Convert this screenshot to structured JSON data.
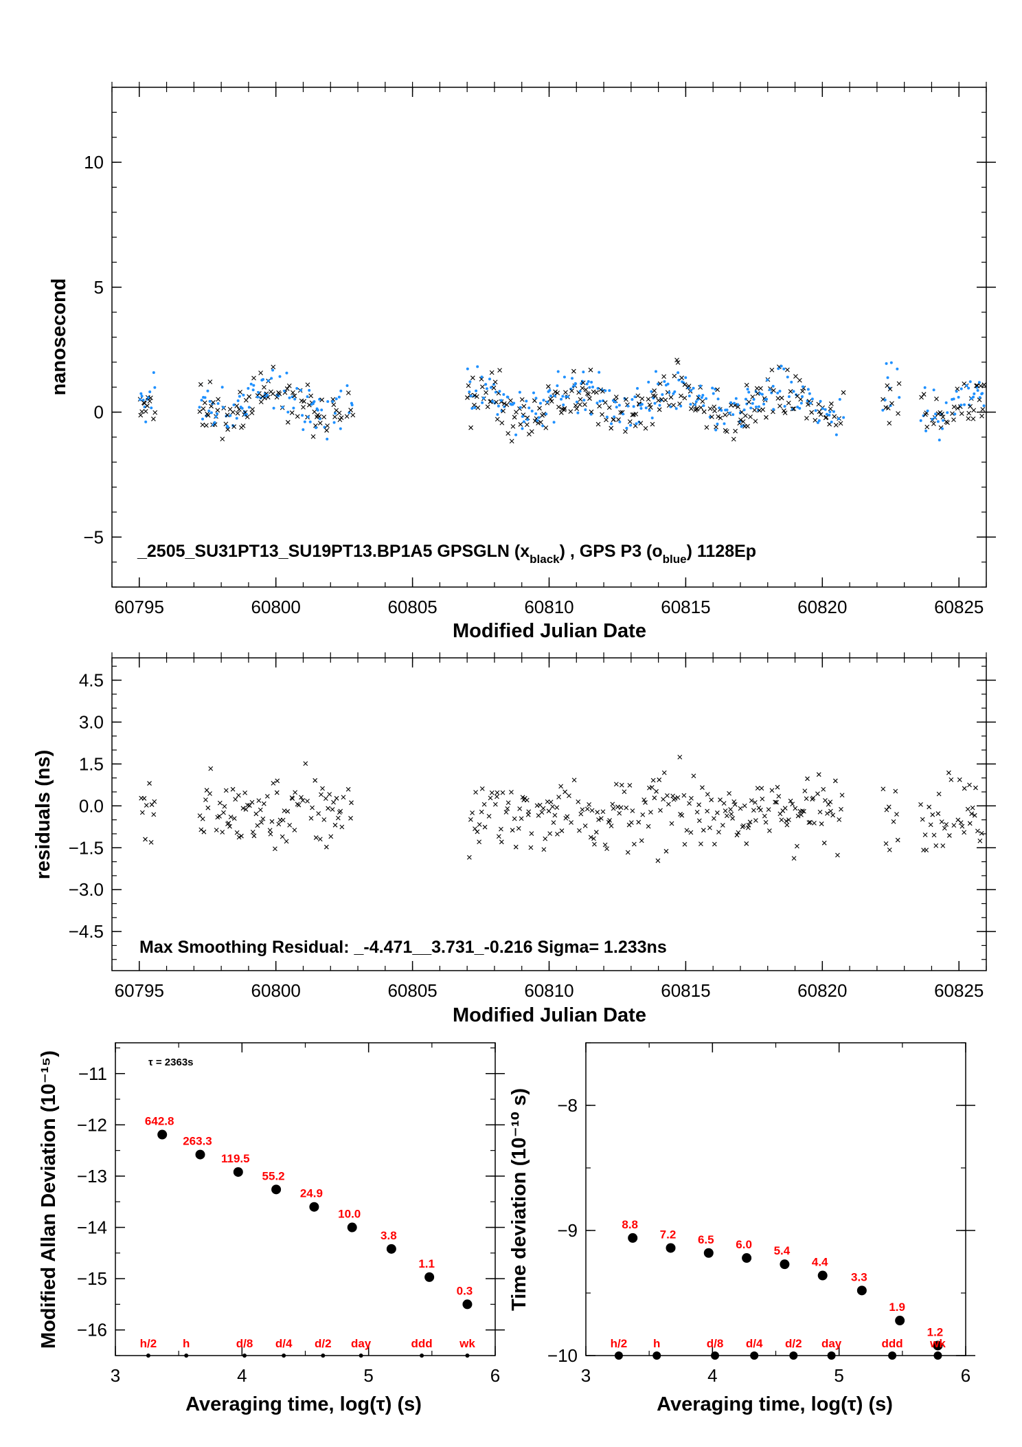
{
  "chart_data": [
    {
      "type": "scatter",
      "xlabel": "Modified Julian Date",
      "ylabel": "nanosecond",
      "xlim": [
        60794,
        60826
      ],
      "ylim": [
        -7,
        13
      ],
      "xticks": [
        "60795",
        "60800",
        "60805",
        "60810",
        "60815",
        "60820",
        "60825"
      ],
      "yticks": [
        "−5",
        "0",
        "5",
        "10"
      ],
      "annotation": {
        "prefix": "_2505_SU31PT13_SU19PT13.BP1A5     GPSGLN (x",
        "sub1": "black",
        "mid": ") ,  GPS P3 (o",
        "sub2": "blue",
        "suffix": ")  1128Ep"
      },
      "series_colors": [
        "#000000",
        "#1e90ff"
      ],
      "segments": [
        [
          60795.0,
          60795.6
        ],
        [
          60797.2,
          60802.8
        ],
        [
          60807.0,
          60820.8
        ],
        [
          60822.2,
          60822.8
        ],
        [
          60823.6,
          60825.9
        ]
      ]
    },
    {
      "type": "scatter",
      "xlabel": "Modified Julian Date",
      "ylabel": "residuals (ns)",
      "xlim": [
        60794,
        60826
      ],
      "ylim": [
        -5.9,
        5.3
      ],
      "xticks": [
        "60795",
        "60800",
        "60805",
        "60810",
        "60815",
        "60820",
        "60825"
      ],
      "yticks": [
        "−4.5",
        "−3.0",
        "−1.5",
        "0.0",
        "1.5",
        "3.0",
        "4.5"
      ],
      "annotation": "Max Smoothing Residual: _-4.471__3.731_-0.216  Sigma= 1.233ns"
    },
    {
      "type": "scatter",
      "xlabel": "Averaging time, log(τ) (s)",
      "ylabel": "Modified Allan Deviation (10⁻¹⁵)",
      "xlim": [
        3,
        6
      ],
      "ylim": [
        -16.5,
        -10.4
      ],
      "xticks": [
        "3",
        "4",
        "5",
        "6"
      ],
      "yticks": [
        "−16",
        "−15",
        "−14",
        "−13",
        "−12",
        "−11"
      ],
      "tau_label": "τ = 2363s",
      "x": [
        3.37,
        3.67,
        3.97,
        4.27,
        4.57,
        4.87,
        5.18,
        5.48,
        5.78
      ],
      "y": [
        -12.19,
        -12.58,
        -12.92,
        -13.26,
        -13.6,
        -14.0,
        -14.42,
        -14.97,
        -15.5
      ],
      "labels": [
        "642.8",
        "263.3",
        "119.5",
        "55.2",
        "24.9",
        "10.0",
        "3.8",
        "1.1",
        "0.3"
      ],
      "marker_labels": [
        {
          "x": 3.26,
          "text": "h/2"
        },
        {
          "x": 3.56,
          "text": "h"
        },
        {
          "x": 4.02,
          "text": "d/8"
        },
        {
          "x": 4.33,
          "text": "d/4"
        },
        {
          "x": 4.64,
          "text": "d/2"
        },
        {
          "x": 4.94,
          "text": "day"
        },
        {
          "x": 5.42,
          "text": "ddd"
        },
        {
          "x": 5.78,
          "text": "wk"
        }
      ]
    },
    {
      "type": "scatter",
      "xlabel": "Averaging time, log(τ) (s)",
      "ylabel": "Time deviation (10⁻¹⁰ s)",
      "xlim": [
        3,
        6
      ],
      "ylim": [
        -10,
        -7.5
      ],
      "xticks": [
        "3",
        "4",
        "5",
        "6"
      ],
      "yticks": [
        "−10",
        "−9",
        "−8"
      ],
      "x": [
        3.37,
        3.67,
        3.97,
        4.27,
        4.57,
        4.87,
        5.18,
        5.48,
        5.78
      ],
      "y": [
        -9.06,
        -9.14,
        -9.18,
        -9.22,
        -9.27,
        -9.36,
        -9.48,
        -9.72,
        -9.92
      ],
      "labels": [
        "8.8",
        "7.2",
        "6.5",
        "6.0",
        "5.4",
        "4.4",
        "3.3",
        "1.9",
        "1.2"
      ],
      "marker_labels": [
        {
          "x": 3.26,
          "text": "h/2"
        },
        {
          "x": 3.56,
          "text": "h"
        },
        {
          "x": 4.02,
          "text": "d/8"
        },
        {
          "x": 4.33,
          "text": "d/4"
        },
        {
          "x": 4.64,
          "text": "d/2"
        },
        {
          "x": 4.94,
          "text": "day"
        },
        {
          "x": 5.42,
          "text": "ddd"
        },
        {
          "x": 5.78,
          "text": "wk"
        }
      ]
    }
  ]
}
